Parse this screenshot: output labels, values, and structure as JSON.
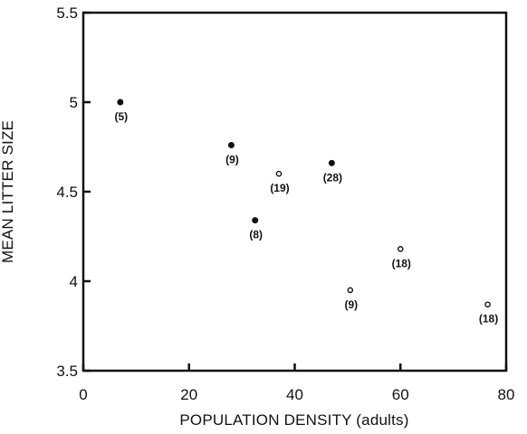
{
  "chart_data": {
    "type": "scatter",
    "xlabel": "POPULATION DENSITY (adults)",
    "ylabel": "MEAN LITTER SIZE",
    "xlim": [
      0,
      80
    ],
    "ylim": [
      3.5,
      5.5
    ],
    "x_ticks": [
      0,
      20,
      40,
      60,
      80
    ],
    "y_ticks": [
      3.5,
      4,
      4.5,
      5,
      5.5
    ],
    "x_tick_labels": [
      "0",
      "20",
      "40",
      "60",
      "80"
    ],
    "y_tick_labels": [
      "3.5",
      "4",
      "4.5",
      "5",
      "5.5"
    ],
    "grid": false,
    "legend": "none",
    "series": [
      {
        "marker": "filled-circle",
        "color": "#111111",
        "points": [
          {
            "x": 7,
            "y": 5.0,
            "label": "(5)"
          },
          {
            "x": 28,
            "y": 4.76,
            "label": "(9)"
          },
          {
            "x": 32.5,
            "y": 4.34,
            "label": "(8)"
          },
          {
            "x": 47,
            "y": 4.66,
            "label": "(28)"
          }
        ]
      },
      {
        "marker": "open-circle",
        "color": "#111111",
        "points": [
          {
            "x": 37,
            "y": 4.6,
            "label": "(19)"
          },
          {
            "x": 50.5,
            "y": 3.95,
            "label": "(9)"
          },
          {
            "x": 60,
            "y": 4.18,
            "label": "(18)"
          },
          {
            "x": 76.5,
            "y": 3.87,
            "label": "(18)"
          }
        ]
      }
    ]
  }
}
